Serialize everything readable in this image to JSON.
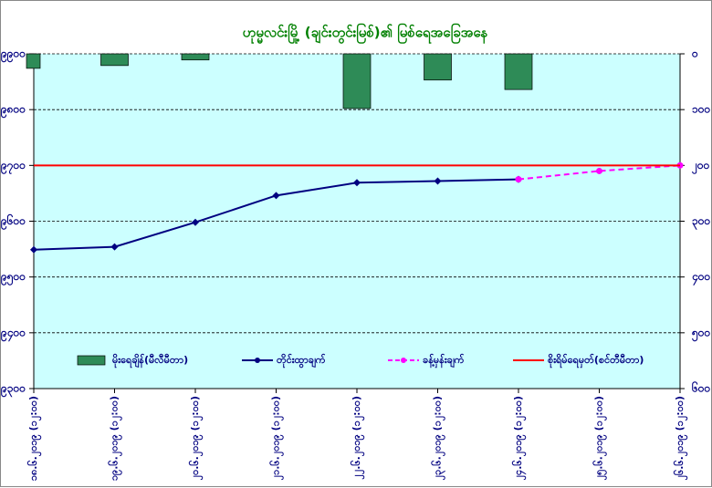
{
  "chart_data": {
    "type": "combo",
    "title": "ဟုမ္မလင်းမြို့ (ချင်းတွင်းမြစ်)၏ မြစ်ရေအခြေအနေ",
    "categories": [
      "၁၈.၆.၂၀၁၉ (၁၂:၀၀)",
      "၁၉.၆.၂၀၁၉ (၁၂:၀၀)",
      "၂၀.၆.၂၀၁၉ (၁၂:၀၀)",
      "၂၁.၆.၂၀၁၉ (၁၂:၀၀)",
      "၂၂.၆.၂၀၁၉ (၁၂:၀၀)",
      "၂၃.၆.၂၀၁၉ (၁၂:၀၀)",
      "၂၄.၆.၂၀၁၉ (၁၂:၀၀)",
      "၂၅.၆.၂၀၁၉ (၁၂:၀၀)",
      "၂၆.၆.၂၀၁၉ (၁၂:၀၀)"
    ],
    "series": [
      {
        "name": "မိုးရေချိန်(မီလီမီတာ)",
        "kind": "bar",
        "axis": "y2",
        "color": "#2e8b57",
        "values": [
          26,
          21,
          11,
          0,
          98,
          47,
          64,
          null,
          null
        ]
      },
      {
        "name": "တိုင်းထွာချက်",
        "kind": "line",
        "color": "#000080",
        "values": [
          9549,
          9554,
          9598,
          9646,
          9669,
          9672,
          9675,
          null,
          null
        ]
      },
      {
        "name": "ခန့်မှန်းချက်",
        "kind": "dashed",
        "color": "#ff00ff",
        "values": [
          null,
          null,
          null,
          null,
          null,
          null,
          9675,
          9690,
          9700
        ]
      },
      {
        "name": "စိုးရိမ်ရေမှတ်(စင်တီမီတာ)",
        "kind": "hline",
        "color": "#ff0000",
        "value": 9700
      }
    ],
    "ylim": [
      9300,
      9900
    ],
    "yticks": [
      {
        "value": 9300,
        "label": "၉၃၀၀"
      },
      {
        "value": 9400,
        "label": "၉၄၀၀"
      },
      {
        "value": 9500,
        "label": "၉၅၀၀"
      },
      {
        "value": 9600,
        "label": "၉၆၀၀"
      },
      {
        "value": 9700,
        "label": "၉၇၀၀"
      },
      {
        "value": 9800,
        "label": "၉၈၀၀"
      },
      {
        "value": 9900,
        "label": "၉၉၀၀"
      }
    ],
    "y2lim": [
      600,
      0
    ],
    "y2ticks": [
      {
        "value": 0,
        "label": "၀"
      },
      {
        "value": 100,
        "label": "၁၀၀"
      },
      {
        "value": 200,
        "label": "၂၀၀"
      },
      {
        "value": 300,
        "label": "၃၀၀"
      },
      {
        "value": 400,
        "label": "၄၀၀"
      },
      {
        "value": 500,
        "label": "၅၀၀"
      },
      {
        "value": 600,
        "label": "၆၀၀"
      }
    ],
    "grid": true,
    "background": "#ccffff"
  }
}
